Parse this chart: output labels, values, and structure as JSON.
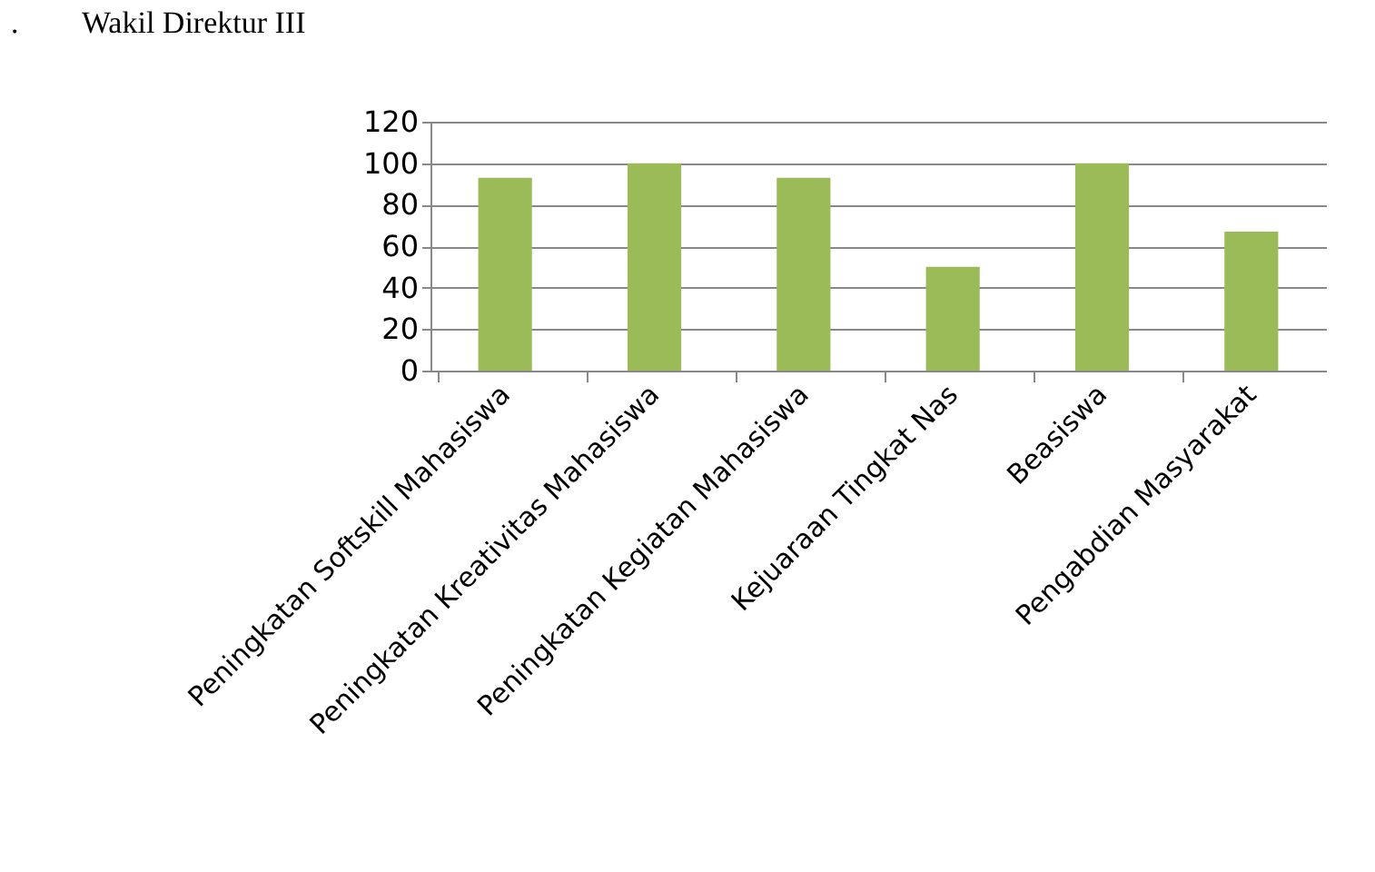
{
  "chart_data": {
    "type": "bar",
    "title": "Wakil Direktur III",
    "annotations": [
      "."
    ],
    "categories": [
      "Peningkatan Softskill Mahasiswa",
      "Peningkatan Kreativitas Mahasiswa",
      "Peningkatan Kegiatan Mahasiswa",
      "Kejuaraan Tingkat Nas",
      "Beasiswa",
      "Pengabdian Masyarakat"
    ],
    "values": [
      93,
      100,
      93,
      50,
      100,
      67
    ],
    "color": "#9bbb59",
    "ylim": [
      0,
      120
    ],
    "yticks": [
      0,
      20,
      40,
      60,
      80,
      100,
      120
    ],
    "grid": "y"
  }
}
